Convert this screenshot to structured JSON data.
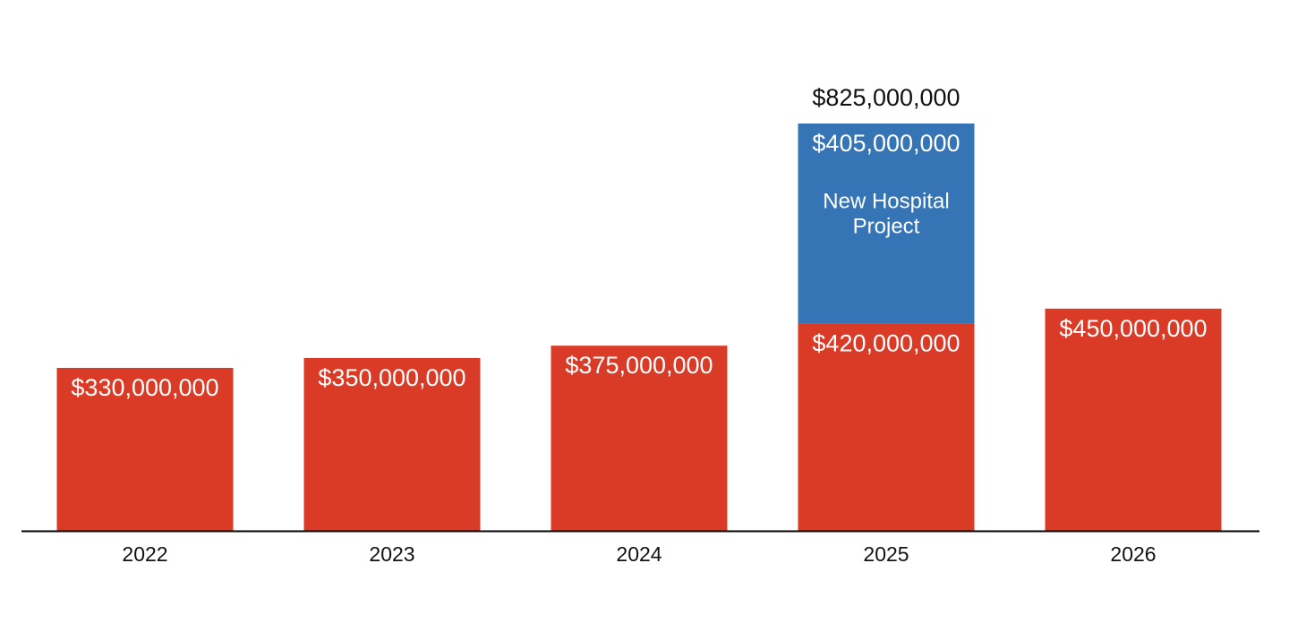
{
  "chart_data": {
    "type": "bar",
    "stacked": true,
    "title": "",
    "xlabel": "",
    "ylabel": "",
    "ylim": [
      0,
      900000000
    ],
    "grid": false,
    "categories": [
      "2022",
      "2023",
      "2024",
      "2025",
      "2026"
    ],
    "series": [
      {
        "name": "Base",
        "color": "#d93b26",
        "values": [
          330000000,
          350000000,
          375000000,
          420000000,
          450000000
        ],
        "labels": [
          "$330,000,000",
          "$350,000,000",
          "$375,000,000",
          "$420,000,000",
          "$450,000,000"
        ]
      },
      {
        "name": "New Hospital Project",
        "color": "#3574b5",
        "values": [
          0,
          0,
          0,
          405000000,
          0
        ],
        "labels": [
          "",
          "",
          "",
          "$405,000,000",
          ""
        ],
        "annotation_lines": [
          "New Hospital",
          "Project"
        ]
      }
    ],
    "totals": [
      {
        "category": "2025",
        "value": 825000000,
        "label": "$825,000,000"
      }
    ]
  }
}
